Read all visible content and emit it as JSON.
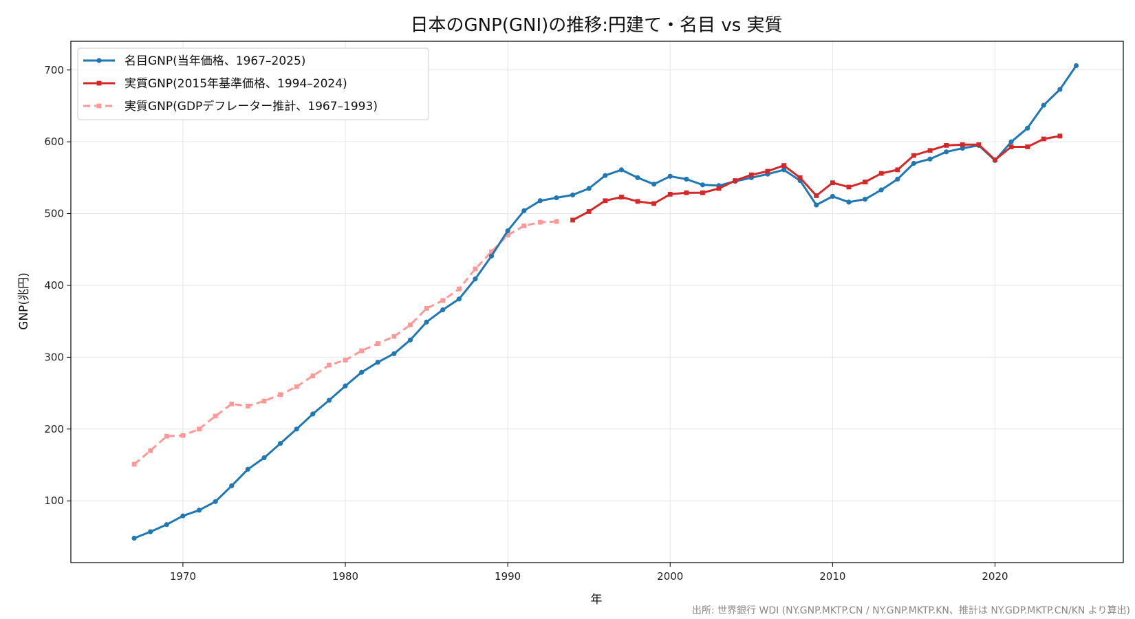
{
  "chart_data": {
    "type": "line",
    "title": "日本のGNP(GNI)の推移:円建て・名目 vs 実質",
    "xlabel": "年",
    "ylabel": "GNP(兆円)",
    "xlim": [
      1963.1,
      2027.9
    ],
    "ylim": [
      14,
      740
    ],
    "xticks": [
      1970,
      1980,
      1990,
      2000,
      2010,
      2020
    ],
    "yticks": [
      100,
      200,
      300,
      400,
      500,
      600,
      700
    ],
    "grid": true,
    "legend_position": "top-left",
    "source": "出所: 世界銀行 WDI (NY.GNP.MKTP.CN / NY.GNP.MKTP.KN、推計は NY.GDP.MKTP.CN/KN より算出)",
    "series": [
      {
        "name": "名目GNP(当年価格、1967–2025)",
        "color": "#1f77b4",
        "style": "solid",
        "marker": "circle",
        "x": [
          1967,
          1968,
          1969,
          1970,
          1971,
          1972,
          1973,
          1974,
          1975,
          1976,
          1977,
          1978,
          1979,
          1980,
          1981,
          1982,
          1983,
          1984,
          1985,
          1986,
          1987,
          1988,
          1989,
          1990,
          1991,
          1992,
          1993,
          1994,
          1995,
          1996,
          1997,
          1998,
          1999,
          2000,
          2001,
          2002,
          2003,
          2004,
          2005,
          2006,
          2007,
          2008,
          2009,
          2010,
          2011,
          2012,
          2013,
          2014,
          2015,
          2016,
          2017,
          2018,
          2019,
          2020,
          2021,
          2022,
          2023,
          2024,
          2025
        ],
        "values": [
          48,
          57,
          67,
          79,
          87,
          99,
          121,
          144,
          160,
          180,
          200,
          221,
          240,
          260,
          279,
          293,
          305,
          324,
          349,
          366,
          381,
          409,
          441,
          476,
          504,
          518,
          522,
          526,
          535,
          553,
          561,
          550,
          541,
          552,
          548,
          540,
          539,
          545,
          550,
          555,
          561,
          546,
          512,
          524,
          516,
          520,
          533,
          548,
          570,
          576,
          586,
          591,
          595,
          574,
          600,
          619,
          651,
          673,
          706
        ]
      },
      {
        "name": "実質GNP(2015年基準価格、1994–2024)",
        "color": "#d62728",
        "style": "solid",
        "marker": "square",
        "x": [
          1994,
          1995,
          1996,
          1997,
          1998,
          1999,
          2000,
          2001,
          2002,
          2003,
          2004,
          2005,
          2006,
          2007,
          2008,
          2009,
          2010,
          2011,
          2012,
          2013,
          2014,
          2015,
          2016,
          2017,
          2018,
          2019,
          2020,
          2021,
          2022,
          2023,
          2024
        ],
        "values": [
          491,
          503,
          518,
          523,
          517,
          514,
          527,
          529,
          529,
          535,
          546,
          554,
          559,
          567,
          550,
          525,
          543,
          537,
          544,
          556,
          561,
          581,
          588,
          595,
          596,
          596,
          575,
          593,
          593,
          604,
          608
        ]
      },
      {
        "name": "実質GNP(GDPデフレーター推計、1967–1993)",
        "color": "#ff9896",
        "style": "dashed",
        "marker": "square",
        "x": [
          1967,
          1968,
          1969,
          1970,
          1971,
          1972,
          1973,
          1974,
          1975,
          1976,
          1977,
          1978,
          1979,
          1980,
          1981,
          1982,
          1983,
          1984,
          1985,
          1986,
          1987,
          1988,
          1989,
          1990,
          1991,
          1992,
          1993
        ],
        "values": [
          151,
          170,
          190,
          191,
          200,
          218,
          235,
          232,
          239,
          248,
          259,
          274,
          289,
          296,
          309,
          319,
          329,
          345,
          368,
          379,
          395,
          423,
          447,
          470,
          483,
          488,
          489
        ]
      }
    ]
  }
}
